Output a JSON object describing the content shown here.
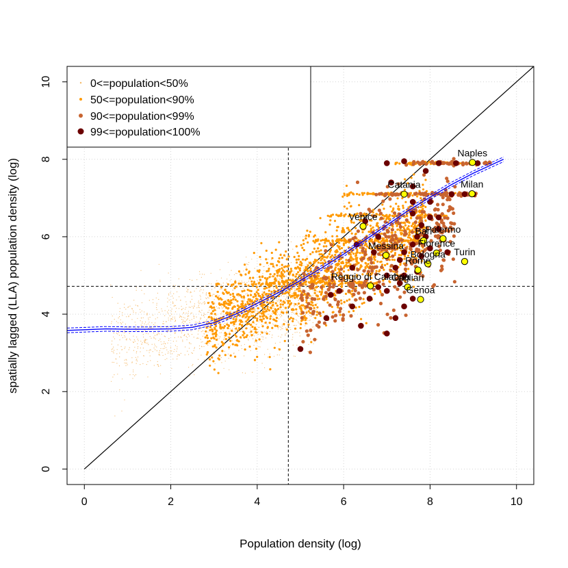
{
  "chart_data": {
    "type": "scatter",
    "xlabel": "Population density (log)",
    "ylabel": "spatially lagged (LLA) population density (log)",
    "xlim": [
      -0.4,
      10.4
    ],
    "ylim": [
      -0.4,
      10.4
    ],
    "x_ticks": [
      0,
      2,
      4,
      6,
      8,
      10
    ],
    "y_ticks": [
      0,
      2,
      4,
      6,
      8,
      10
    ],
    "x_tick_labels": [
      "0",
      "2",
      "4",
      "6",
      "8",
      "10"
    ],
    "y_tick_labels": [
      "0",
      "2",
      "4",
      "6",
      "8",
      "10"
    ],
    "grid": true,
    "legend_position": "top-left",
    "legend": [
      {
        "label": "0<=population<50%",
        "color": "#f5b866"
      },
      {
        "label": "50<=population<90%",
        "color": "#ff9900"
      },
      {
        "label": "90<=population<99%",
        "color": "#c86430"
      },
      {
        "label": "99<=population<100%",
        "color": "#6b0000"
      }
    ],
    "reference_lines": {
      "identity": {
        "from": [
          0,
          0
        ],
        "to": [
          10.4,
          10.4
        ],
        "color": "#000000"
      },
      "mean_x": 4.72,
      "mean_y": 4.72
    },
    "smooth_fit": {
      "color": "#0000ff",
      "x": [
        -0.4,
        0.5,
        1.0,
        1.5,
        2.0,
        2.5,
        3.0,
        3.5,
        4.0,
        4.5,
        5.0,
        5.5,
        6.0,
        6.5,
        7.0,
        7.5,
        8.0,
        8.5,
        9.0,
        9.7
      ],
      "y": [
        3.58,
        3.62,
        3.61,
        3.61,
        3.62,
        3.66,
        3.78,
        4.0,
        4.28,
        4.56,
        4.87,
        5.2,
        5.55,
        5.92,
        6.3,
        6.68,
        7.02,
        7.35,
        7.64,
        8.0
      ],
      "band": 0.06
    },
    "series": [
      {
        "name": "0<=population<50%",
        "color": "#f5b866",
        "cloud": {
          "count": 1600,
          "x_range": [
            0.6,
            5.4
          ],
          "slope": 0.26,
          "intercept": 3.1,
          "noise": 0.55
        }
      },
      {
        "name": "50<=population<90%",
        "color": "#ff9900",
        "cloud": {
          "count": 1700,
          "x_range": [
            2.8,
            7.9
          ],
          "slope": 0.52,
          "intercept": 2.2,
          "noise": 0.55
        },
        "bands": [
          {
            "y": 7.9,
            "x_range": [
              7.2,
              9.3
            ]
          },
          {
            "y": 7.1,
            "x_range": [
              6.0,
              9.0
            ]
          },
          {
            "y": 6.55,
            "x_range": [
              5.6,
              8.4
            ]
          },
          {
            "y": 5.9,
            "x_range": [
              5.3,
              7.8
            ]
          },
          {
            "y": 4.8,
            "x_range": [
              4.2,
              6.8
            ]
          }
        ]
      },
      {
        "name": "90<=population<99%",
        "color": "#c86430",
        "cloud": {
          "count": 380,
          "x_range": [
            5.0,
            8.6
          ],
          "slope": 0.6,
          "intercept": 1.3,
          "noise": 0.7
        },
        "bands": [
          {
            "y": 7.9,
            "x_range": [
              7.6,
              9.4
            ]
          },
          {
            "y": 7.1,
            "x_range": [
              6.8,
              9.1
            ]
          }
        ]
      },
      {
        "name": "99<=population<100%",
        "color": "#6b0000",
        "points": [
          [
            5.0,
            3.1
          ],
          [
            5.6,
            3.9
          ],
          [
            5.7,
            4.5
          ],
          [
            6.2,
            4.2
          ],
          [
            6.4,
            3.7
          ],
          [
            6.6,
            4.4
          ],
          [
            6.8,
            4.7
          ],
          [
            7.0,
            3.5
          ],
          [
            7.0,
            4.6
          ],
          [
            7.0,
            5.0
          ],
          [
            7.2,
            3.9
          ],
          [
            7.2,
            5.2
          ],
          [
            7.3,
            4.8
          ],
          [
            7.3,
            5.4
          ],
          [
            7.4,
            4.2
          ],
          [
            7.4,
            5.0
          ],
          [
            7.4,
            5.6
          ],
          [
            7.4,
            7.95
          ],
          [
            7.6,
            4.4
          ],
          [
            7.6,
            5.8
          ],
          [
            7.6,
            6.6
          ],
          [
            7.6,
            6.9
          ],
          [
            7.6,
            7.3
          ],
          [
            7.7,
            5.1
          ],
          [
            7.7,
            6.0
          ],
          [
            7.8,
            5.5
          ],
          [
            7.8,
            6.3
          ],
          [
            7.9,
            6.0
          ],
          [
            7.9,
            7.7
          ],
          [
            8.0,
            6.9
          ],
          [
            8.0,
            6.5
          ],
          [
            8.0,
            5.7
          ],
          [
            8.2,
            6.5
          ],
          [
            8.2,
            6.2
          ],
          [
            8.4,
            5.6
          ],
          [
            8.5,
            7.1
          ],
          [
            9.0,
            7.1
          ],
          [
            7.0,
            7.9
          ],
          [
            7.1,
            7.4
          ],
          [
            6.8,
            6.0
          ],
          [
            6.7,
            5.6
          ],
          [
            6.5,
            6.4
          ],
          [
            6.3,
            5.8
          ],
          [
            6.2,
            5.2
          ],
          [
            5.9,
            4.6
          ],
          [
            8.2,
            7.9
          ],
          [
            8.6,
            7.9
          ],
          [
            8.8,
            7.1
          ],
          [
            9.1,
            7.9
          ]
        ]
      }
    ],
    "cities": [
      {
        "name": "Naples",
        "x": 8.98,
        "y": 7.92
      },
      {
        "name": "Milan",
        "x": 8.97,
        "y": 7.11
      },
      {
        "name": "Catania",
        "x": 7.4,
        "y": 7.1
      },
      {
        "name": "Venice",
        "x": 6.45,
        "y": 6.27
      },
      {
        "name": "Palermo",
        "x": 8.3,
        "y": 5.95
      },
      {
        "name": "Bari",
        "x": 7.85,
        "y": 5.9
      },
      {
        "name": "Florence",
        "x": 8.15,
        "y": 5.58
      },
      {
        "name": "Messina",
        "x": 6.98,
        "y": 5.52
      },
      {
        "name": "Bologna",
        "x": 7.95,
        "y": 5.3
      },
      {
        "name": "Turin",
        "x": 8.8,
        "y": 5.36
      },
      {
        "name": "Rome",
        "x": 7.72,
        "y": 5.14
      },
      {
        "name": "Reggio di Calabria",
        "x": 6.62,
        "y": 4.73
      },
      {
        "name": "Cagliari",
        "x": 7.48,
        "y": 4.7
      },
      {
        "name": "Genoa",
        "x": 7.78,
        "y": 4.38
      }
    ]
  }
}
